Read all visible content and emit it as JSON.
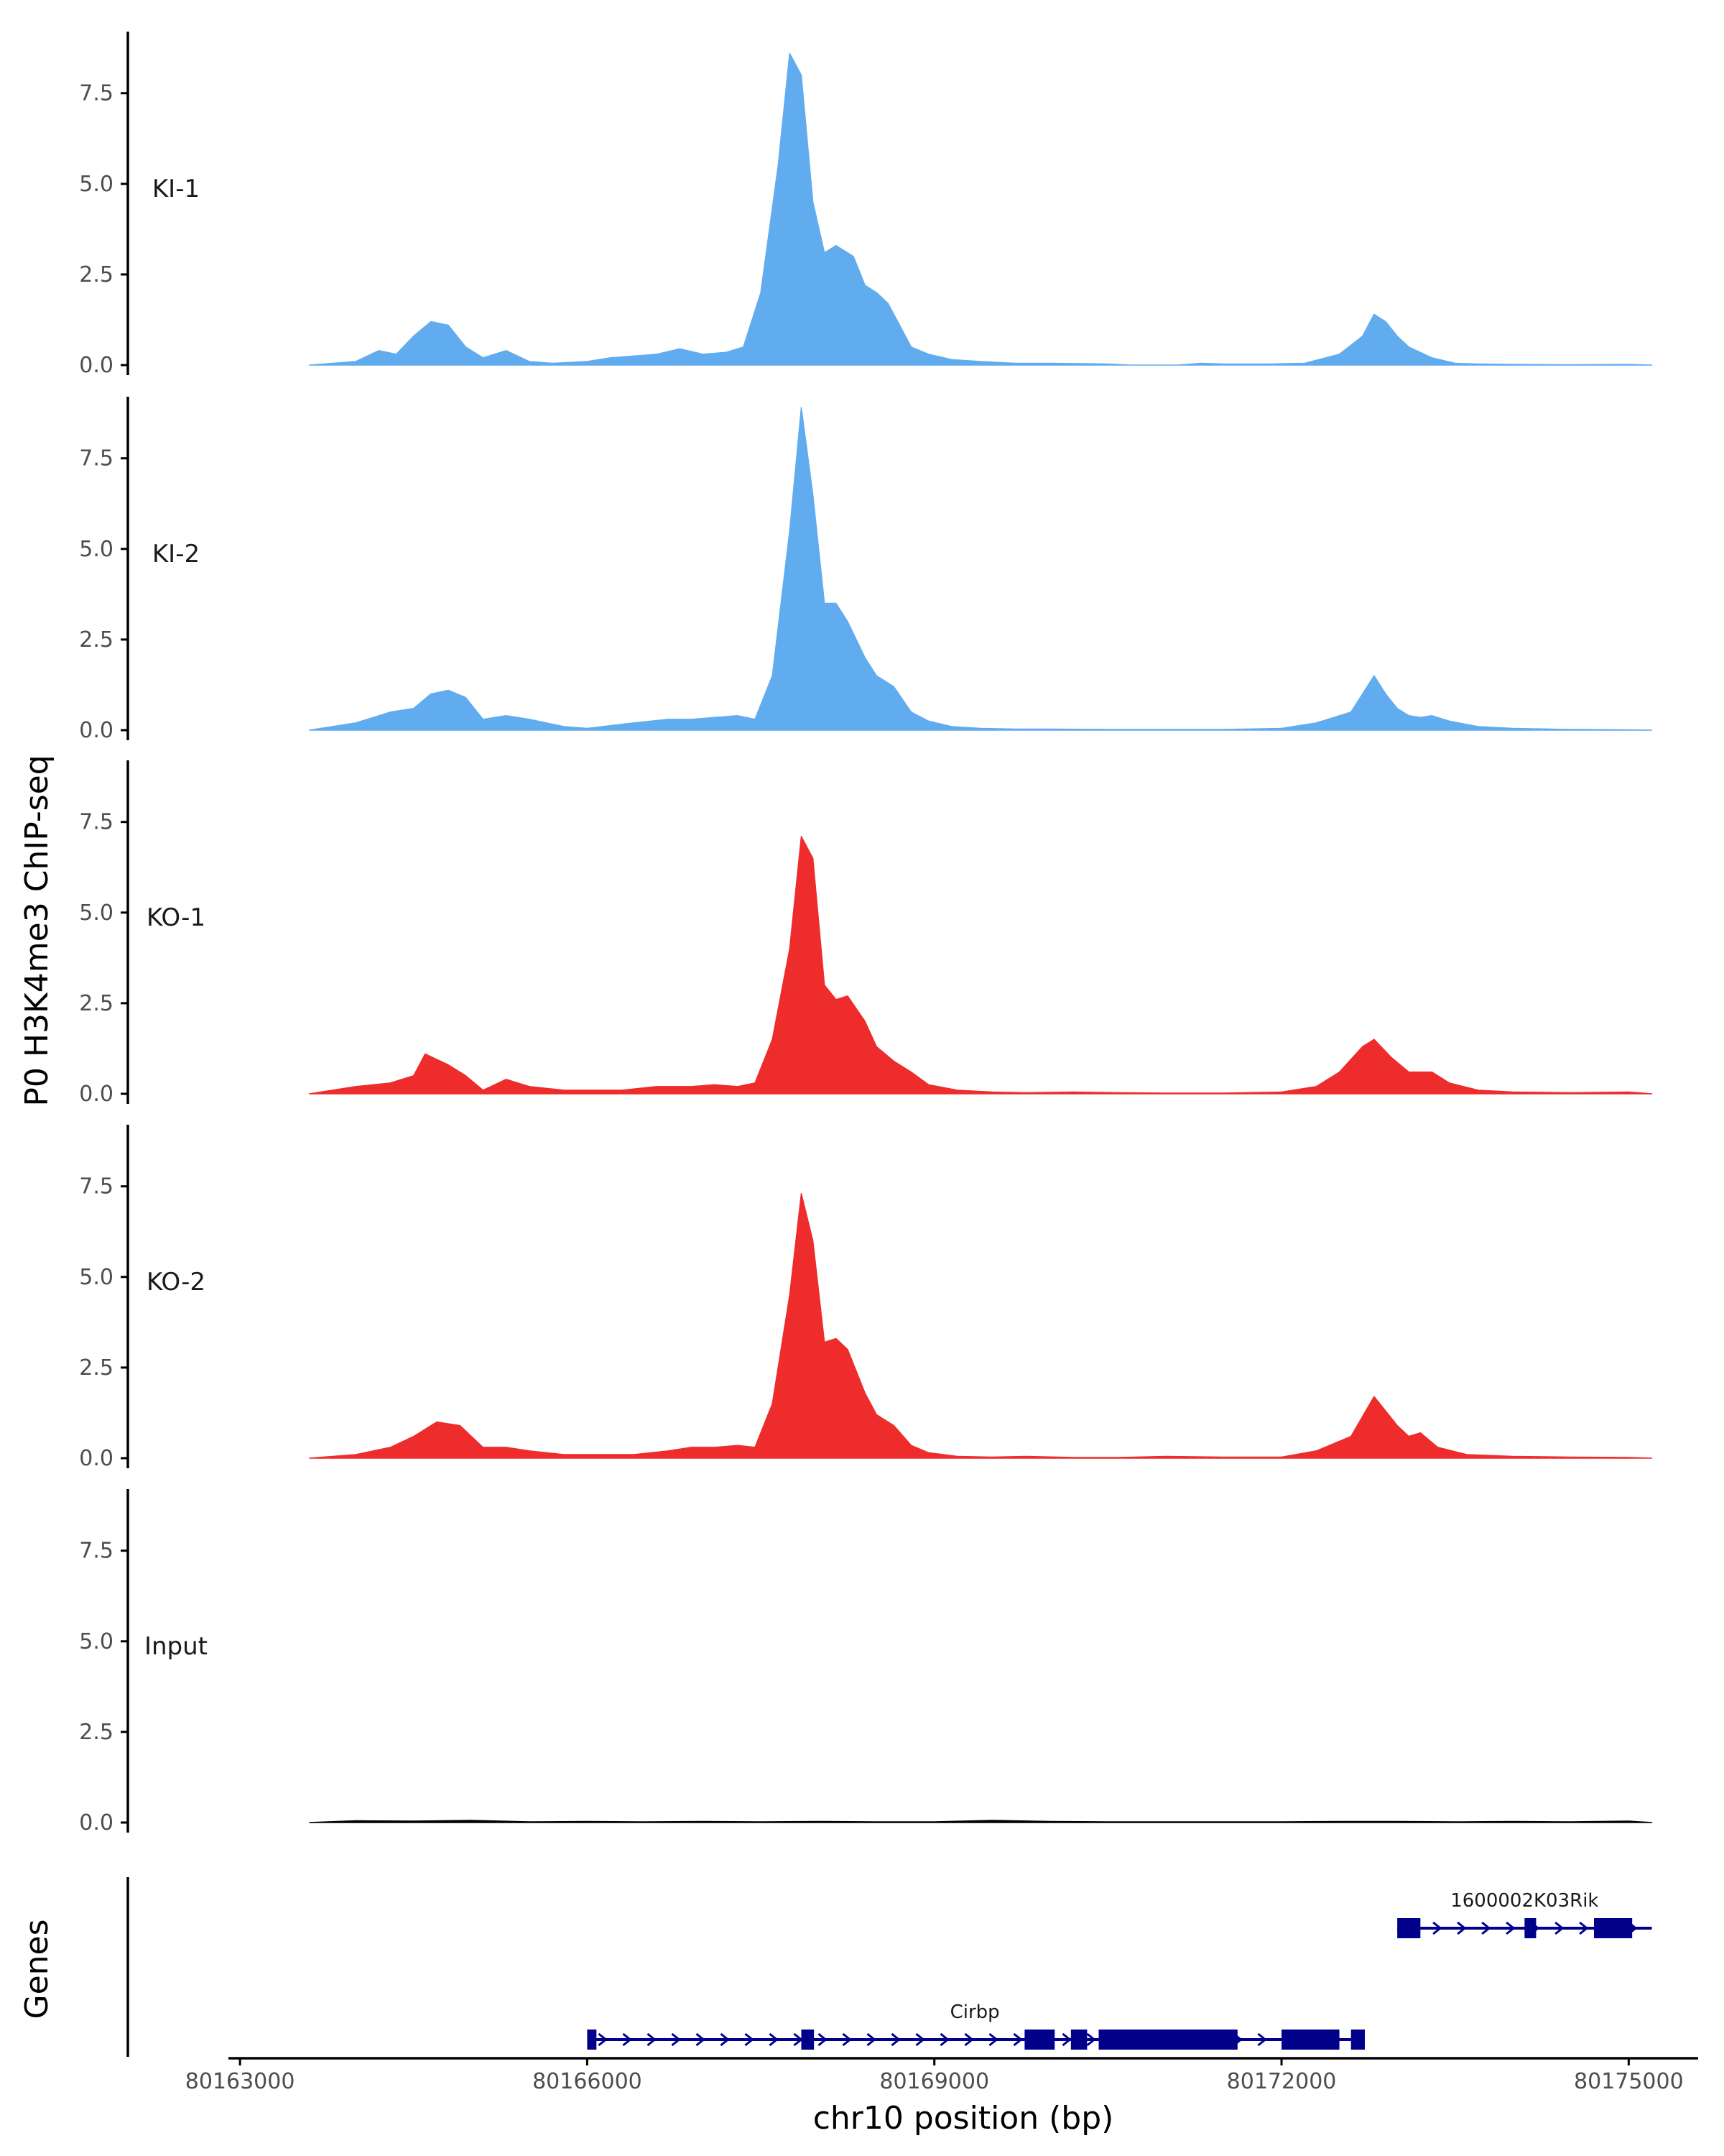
{
  "chart_data": {
    "type": "area",
    "ylabel": "P0 H3K4me3 ChIP-seq",
    "xlabel": "chr10 position (bp)",
    "genes_label": "Genes",
    "xlim": [
      80162900,
      80175600
    ],
    "ylim": [
      0,
      9.2
    ],
    "y_ticks": [
      0,
      2.5,
      5,
      7.5
    ],
    "y_tick_labels": [
      "0.0",
      "2.5",
      "5.0",
      "7.5"
    ],
    "x_ticks": [
      80163000,
      80166000,
      80169000,
      80172000,
      80175000
    ],
    "x_tick_labels": [
      "80163000",
      "80166000",
      "80169000",
      "80172000",
      "80175000"
    ],
    "colors": {
      "KI": "#61acee",
      "KO": "#ee2c2c",
      "Input": "#000000",
      "gene": "#00008b",
      "axis": "#000000"
    },
    "tracks": [
      {
        "name": "KI-1",
        "color": "#61acee",
        "x": [
          80163600,
          80164000,
          80164200,
          80164350,
          80164500,
          80164650,
          80164800,
          80164950,
          80165100,
          80165300,
          80165500,
          80165700,
          80166000,
          80166200,
          80166400,
          80166600,
          80166800,
          80167000,
          80167200,
          80167350,
          80167500,
          80167650,
          80167750,
          80167850,
          80167950,
          80168050,
          80168150,
          80168300,
          80168400,
          80168500,
          80168600,
          80168700,
          80168800,
          80168950,
          80169150,
          80169400,
          80169700,
          80170000,
          80170500,
          80170700,
          80170900,
          80171100,
          80171300,
          80171500,
          80171900,
          80172200,
          80172500,
          80172700,
          80172800,
          80172900,
          80173000,
          80173100,
          80173300,
          80173500,
          80173700,
          80174000,
          80174500,
          80175000,
          80175200
        ],
        "y": [
          0,
          0.1,
          0.4,
          0.3,
          0.8,
          1.2,
          1.1,
          0.5,
          0.2,
          0.4,
          0.1,
          0.05,
          0.1,
          0.2,
          0.25,
          0.3,
          0.45,
          0.3,
          0.35,
          0.5,
          2.0,
          5.5,
          8.6,
          8.0,
          4.5,
          3.1,
          3.3,
          3.0,
          2.2,
          2.0,
          1.7,
          1.1,
          0.5,
          0.3,
          0.15,
          0.1,
          0.05,
          0.05,
          0.03,
          0,
          0,
          0,
          0.05,
          0.03,
          0.03,
          0.05,
          0.3,
          0.8,
          1.4,
          1.2,
          0.8,
          0.5,
          0.2,
          0.05,
          0.03,
          0.02,
          0.01,
          0.02,
          0
        ]
      },
      {
        "name": "KI-2",
        "color": "#61acee",
        "x": [
          80163600,
          80164000,
          80164300,
          80164500,
          80164650,
          80164800,
          80164950,
          80165100,
          80165300,
          80165500,
          80165800,
          80166000,
          80166400,
          80166700,
          80166900,
          80167100,
          80167300,
          80167450,
          80167600,
          80167750,
          80167850,
          80167950,
          80168050,
          80168150,
          80168250,
          80168400,
          80168500,
          80168650,
          80168800,
          80168950,
          80169150,
          80169400,
          80169700,
          80170000,
          80170500,
          80171000,
          80171500,
          80172000,
          80172300,
          80172600,
          80172800,
          80172900,
          80173000,
          80173100,
          80173200,
          80173300,
          80173450,
          80173700,
          80174000,
          80174500,
          80175000,
          80175200
        ],
        "y": [
          0,
          0.2,
          0.5,
          0.6,
          1.0,
          1.1,
          0.9,
          0.3,
          0.4,
          0.3,
          0.1,
          0.05,
          0.2,
          0.3,
          0.3,
          0.35,
          0.4,
          0.3,
          1.5,
          5.5,
          8.9,
          6.5,
          3.5,
          3.5,
          3.0,
          2.0,
          1.5,
          1.2,
          0.5,
          0.25,
          0.1,
          0.05,
          0.03,
          0.03,
          0.02,
          0.02,
          0.02,
          0.05,
          0.2,
          0.5,
          1.5,
          1.0,
          0.6,
          0.4,
          0.35,
          0.4,
          0.25,
          0.1,
          0.05,
          0.02,
          0.01,
          0
        ]
      },
      {
        "name": "KO-1",
        "color": "#ee2c2c",
        "x": [
          80163600,
          80164000,
          80164300,
          80164500,
          80164600,
          80164800,
          80164950,
          80165100,
          80165300,
          80165500,
          80165800,
          80166000,
          80166300,
          80166600,
          80166900,
          80167100,
          80167300,
          80167450,
          80167600,
          80167750,
          80167850,
          80167950,
          80168050,
          80168150,
          80168250,
          80168400,
          80168500,
          80168650,
          80168800,
          80168950,
          80169200,
          80169500,
          80169800,
          80170200,
          80170600,
          80171000,
          80171500,
          80172000,
          80172300,
          80172500,
          80172700,
          80172800,
          80172950,
          80173100,
          80173300,
          80173450,
          80173700,
          80174000,
          80174500,
          80175000,
          80175200
        ],
        "y": [
          0,
          0.2,
          0.3,
          0.5,
          1.1,
          0.8,
          0.5,
          0.1,
          0.4,
          0.2,
          0.1,
          0.1,
          0.1,
          0.2,
          0.2,
          0.25,
          0.2,
          0.3,
          1.5,
          4.0,
          7.1,
          6.5,
          3.0,
          2.6,
          2.7,
          2.0,
          1.3,
          0.9,
          0.6,
          0.25,
          0.1,
          0.05,
          0.03,
          0.05,
          0.03,
          0.02,
          0.02,
          0.05,
          0.2,
          0.6,
          1.3,
          1.5,
          1.0,
          0.6,
          0.6,
          0.3,
          0.1,
          0.05,
          0.03,
          0.05,
          0
        ]
      },
      {
        "name": "KO-2",
        "color": "#ee2c2c",
        "x": [
          80163600,
          80164000,
          80164300,
          80164500,
          80164700,
          80164900,
          80165100,
          80165300,
          80165500,
          80165800,
          80166000,
          80166400,
          80166700,
          80166900,
          80167100,
          80167300,
          80167450,
          80167600,
          80167750,
          80167850,
          80167950,
          80168050,
          80168150,
          80168250,
          80168400,
          80168500,
          80168650,
          80168800,
          80168950,
          80169200,
          80169500,
          80169800,
          80170200,
          80170600,
          80171000,
          80171500,
          80172000,
          80172300,
          80172600,
          80172800,
          80172900,
          80173000,
          80173100,
          80173200,
          80173350,
          80173600,
          80174000,
          80174500,
          80175000,
          80175200
        ],
        "y": [
          0,
          0.1,
          0.3,
          0.6,
          1.0,
          0.9,
          0.3,
          0.3,
          0.2,
          0.1,
          0.1,
          0.1,
          0.2,
          0.3,
          0.3,
          0.35,
          0.3,
          1.5,
          4.5,
          7.3,
          6.0,
          3.2,
          3.3,
          3.0,
          1.8,
          1.2,
          0.9,
          0.35,
          0.15,
          0.05,
          0.03,
          0.05,
          0.02,
          0.02,
          0.05,
          0.03,
          0.03,
          0.2,
          0.6,
          1.7,
          1.3,
          0.9,
          0.6,
          0.7,
          0.3,
          0.1,
          0.05,
          0.03,
          0.02,
          0
        ]
      },
      {
        "name": "Input",
        "color": "#000000",
        "x": [
          80163600,
          80164000,
          80164500,
          80165000,
          80165500,
          80166000,
          80166500,
          80167000,
          80167500,
          80168000,
          80168500,
          80169000,
          80169500,
          80170000,
          80170500,
          80171000,
          80171500,
          80172000,
          80172500,
          80173000,
          80173500,
          80174000,
          80174500,
          80175000,
          80175200
        ],
        "y": [
          0,
          0.05,
          0.04,
          0.06,
          0.02,
          0.03,
          0.02,
          0.03,
          0.02,
          0.03,
          0.02,
          0.02,
          0.06,
          0.03,
          0.02,
          0.02,
          0.02,
          0.02,
          0.03,
          0.03,
          0.02,
          0.03,
          0.02,
          0.04,
          0
        ]
      }
    ],
    "genes": [
      {
        "name": "Cirbp",
        "row": 2,
        "start": 80166000,
        "end": 80172700,
        "strand": "+",
        "exons": [
          [
            80166000,
            80166080
          ],
          [
            80167850,
            80167960
          ],
          [
            80169780,
            80170040
          ],
          [
            80170180,
            80170320
          ],
          [
            80170420,
            80171620
          ],
          [
            80172000,
            80172500
          ],
          [
            80172600,
            80172720
          ]
        ]
      },
      {
        "name": "1600002K03Rik",
        "row": 1,
        "start": 80173000,
        "end": 80175200,
        "strand": "+",
        "exons": [
          [
            80173000,
            80173200
          ],
          [
            80174100,
            80174200
          ],
          [
            80174700,
            80175030
          ]
        ]
      }
    ]
  }
}
